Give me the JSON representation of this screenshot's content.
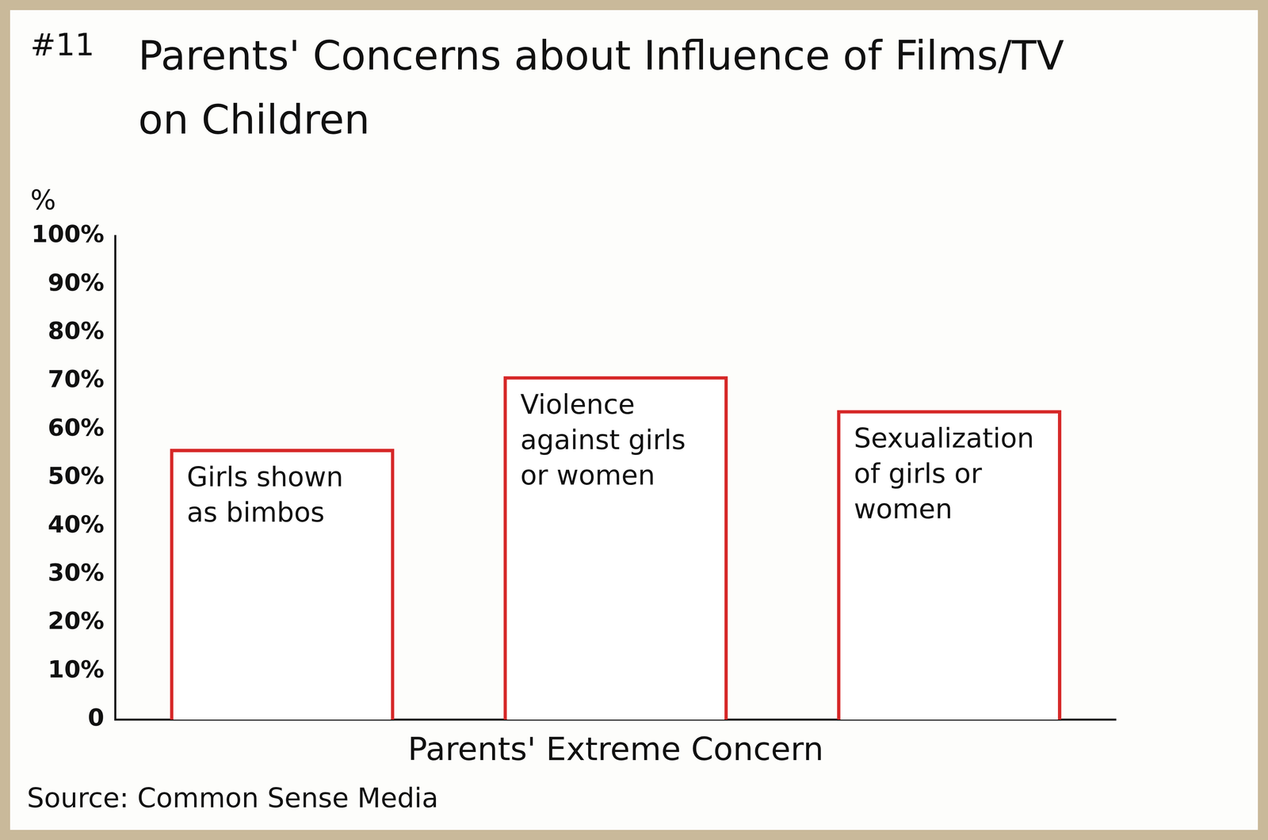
{
  "chart_data": {
    "type": "bar",
    "title": "Parents' Concerns about Influence of Films/TV on Children",
    "label": "#11",
    "source": "Source: Common Sense Media",
    "x_label": "Parents' Extreme Concern",
    "y_label": "%",
    "categories": [
      "Girls shown as bimbos",
      "Violence against girls or women",
      "Sexualization of girls or women"
    ],
    "values": [
      56,
      71,
      64
    ],
    "color": "#d62828",
    "ylim": [
      0,
      100
    ],
    "yticks": [
      0,
      {
        "value": 10,
        "label": "10%"
      },
      {
        "value": 20,
        "label": "20%"
      },
      {
        "value": 30,
        "label": "30%"
      },
      {
        "value": 40,
        "label": "40%"
      },
      {
        "value": 50,
        "label": "50%"
      },
      {
        "value": 60,
        "label": "60%"
      },
      {
        "value": 70,
        "label": "70%"
      },
      {
        "value": 80,
        "label": "80%"
      },
      {
        "value": 90,
        "label": "90%"
      },
      {
        "value": 100,
        "label": "100%"
      }
    ],
    "grid": false,
    "tick_labels": "y"
  }
}
